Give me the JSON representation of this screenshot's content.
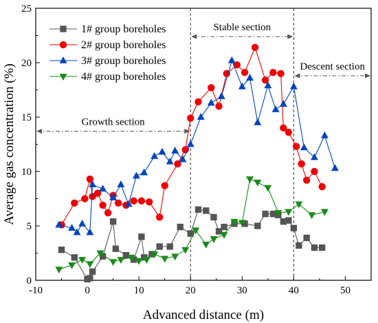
{
  "chart_data": {
    "type": "line",
    "title": "",
    "xlabel": "Advanced distance (m)",
    "ylabel": "Average gas concentration (%)",
    "xlim": [
      -10,
      55
    ],
    "ylim": [
      0,
      25
    ],
    "x_ticks": [
      -10,
      0,
      10,
      20,
      30,
      40,
      50
    ],
    "y_ticks": [
      0,
      5,
      10,
      15,
      20,
      25
    ],
    "grid": false,
    "legend_position": "top-left",
    "series": [
      {
        "name": "1# group boreholes",
        "color": "#555555",
        "marker": "square",
        "x": [
          -5,
          -2.5,
          0,
          0.5,
          1,
          3,
          5,
          5.5,
          7.5,
          9,
          10.5,
          11,
          12.5,
          14,
          16,
          18,
          20,
          21.5,
          23,
          24.5,
          25.5,
          26.5,
          28.5,
          30.5,
          33,
          34.5,
          36,
          37,
          38,
          39,
          40,
          41,
          42.5,
          44,
          45.5
        ],
        "values": [
          2.8,
          2.1,
          0.1,
          0.2,
          0.8,
          2.2,
          5.4,
          2.9,
          2.3,
          1.9,
          4.0,
          2.1,
          2.4,
          3.1,
          3.1,
          4.9,
          4.3,
          6.5,
          6.4,
          5.8,
          4.5,
          4.9,
          5.2,
          5.2,
          5.0,
          6.1,
          6.1,
          6.0,
          5.4,
          5.5,
          4.8,
          3.2,
          3.9,
          3.0,
          3.0
        ]
      },
      {
        "name": "2# group boreholes",
        "color": "#ee0000",
        "marker": "circle",
        "x": [
          -5,
          -2.5,
          -0.5,
          0.5,
          1,
          2,
          3,
          4,
          5,
          6,
          7.5,
          9,
          10.5,
          12,
          14,
          15,
          17.5,
          19,
          20,
          21.5,
          24,
          25.5,
          27,
          29,
          30.5,
          32.5,
          34.5,
          36,
          37.5,
          38,
          39,
          40.5,
          41.5,
          42.5,
          44,
          45.5
        ],
        "values": [
          5.1,
          7.1,
          7.5,
          9.3,
          7.7,
          8.0,
          6.9,
          6.2,
          7.8,
          7.1,
          6.9,
          7.3,
          7.3,
          7.2,
          5.8,
          8.7,
          10.7,
          12.0,
          14.9,
          16.4,
          17.7,
          16.0,
          19.0,
          19.8,
          19.1,
          21.4,
          18.4,
          19.1,
          19.0,
          14.0,
          13.6,
          12.3,
          10.7,
          9.2,
          10.0,
          8.6
        ]
      },
      {
        "name": "3# group boreholes",
        "color": "#0044bb",
        "marker": "triangle-up",
        "x": [
          -5.5,
          -3,
          -2,
          -1,
          0.5,
          1,
          3,
          5,
          6.5,
          8,
          9.5,
          11,
          13,
          14.5,
          16,
          17,
          18.5,
          20,
          22,
          24,
          26,
          28,
          30,
          31.5,
          33,
          35,
          36.5,
          38,
          40,
          42,
          44,
          46,
          48
        ],
        "values": [
          5.1,
          4.8,
          4.4,
          5.2,
          4.4,
          8.8,
          8.4,
          7.6,
          8.8,
          7.0,
          9.6,
          9.9,
          11.4,
          11.8,
          10.9,
          11.9,
          11.1,
          12.5,
          15.0,
          16.3,
          16.9,
          20.2,
          17.8,
          18.6,
          14.5,
          17.9,
          15.7,
          16.2,
          17.8,
          12.2,
          11.3,
          13.3,
          10.3
        ]
      },
      {
        "name": "4# group boreholes",
        "color": "#1a8a1a",
        "marker": "triangle-down",
        "x": [
          -5.5,
          -3,
          -1,
          0.5,
          2.5,
          5,
          6.5,
          8.5,
          10,
          11.5,
          13,
          15,
          17,
          19,
          21,
          23,
          24.5,
          26.5,
          28.5,
          30,
          31.5,
          33,
          35,
          37,
          39,
          41,
          43.5,
          46
        ],
        "values": [
          1.0,
          1.4,
          1.9,
          1.5,
          2.5,
          1.7,
          1.9,
          2.1,
          1.8,
          1.9,
          2.4,
          2.0,
          2.2,
          2.8,
          4.6,
          3.3,
          3.8,
          4.2,
          5.4,
          5.3,
          9.3,
          9.0,
          8.5,
          6.2,
          6.3,
          7.0,
          6.0,
          6.3
        ]
      }
    ],
    "reference_lines": [
      {
        "x": 20,
        "style": "dashed"
      },
      {
        "x": 40,
        "style": "dashed"
      }
    ],
    "annotations": [
      {
        "label": "Growth section",
        "x_from": -10,
        "x_to": 20,
        "y": 13.7
      },
      {
        "label": "Stable section",
        "x_from": 20,
        "x_to": 40,
        "y": 22.4
      },
      {
        "label": "Descent section",
        "x_from": 40,
        "x_to": 55,
        "y": 18.8
      }
    ]
  }
}
